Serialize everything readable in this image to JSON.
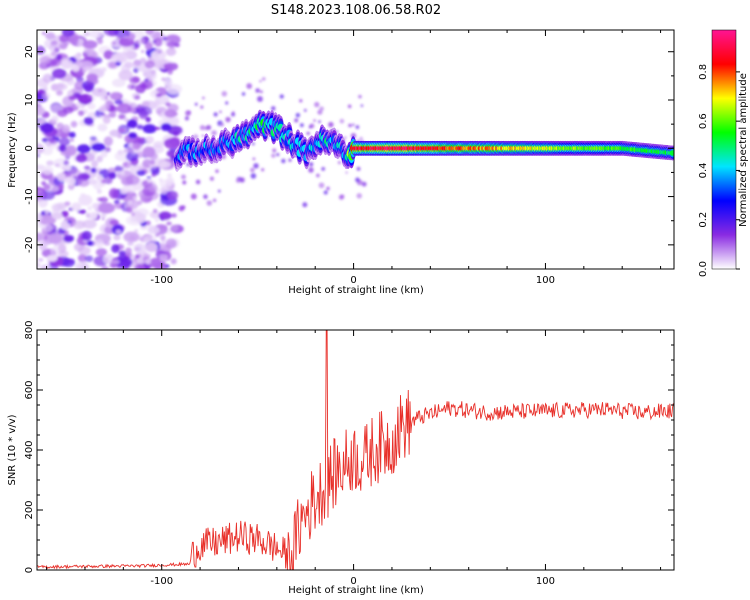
{
  "title": "S148.2023.108.06.58.R02",
  "chart_data": [
    {
      "type": "heatmap",
      "xlabel": "Height of straight line (km)",
      "ylabel": "Frequency (Hz)",
      "xlim": [
        -165,
        167
      ],
      "ylim": [
        -25,
        24.5
      ],
      "x_ticks": [
        -100,
        0,
        100
      ],
      "y_ticks": [
        -20,
        -10,
        0,
        10,
        20
      ],
      "colorbar": {
        "label": "Normalized spectral amplitude",
        "range": [
          0.0,
          0.97
        ],
        "ticks": [
          "0.0",
          "0.2",
          "0.4",
          "0.6",
          "0.8"
        ],
        "colors": [
          "#ffffff",
          "#8a2be2",
          "#0000ff",
          "#00e5ff",
          "#00ff00",
          "#ffff00",
          "#ff0000",
          "#ff1493"
        ]
      },
      "band": [
        {
          "x": -92,
          "f": -2.0,
          "amp": 0.28
        },
        {
          "x": -85,
          "f": -0.5,
          "amp": 0.3
        },
        {
          "x": -75,
          "f": -0.5,
          "amp": 0.32
        },
        {
          "x": -65,
          "f": 1.0,
          "amp": 0.35
        },
        {
          "x": -55,
          "f": 3.0,
          "amp": 0.4
        },
        {
          "x": -47,
          "f": 5.0,
          "amp": 0.45
        },
        {
          "x": -40,
          "f": 4.0,
          "amp": 0.4
        },
        {
          "x": -32,
          "f": 1.5,
          "amp": 0.35
        },
        {
          "x": -25,
          "f": -1.0,
          "amp": 0.35
        },
        {
          "x": -18,
          "f": 1.5,
          "amp": 0.4
        },
        {
          "x": -10,
          "f": 1.0,
          "amp": 0.4
        },
        {
          "x": -3,
          "f": -1.5,
          "amp": 0.4
        },
        {
          "x": 0,
          "f": 0.0,
          "amp": 0.85
        },
        {
          "x": 20,
          "f": 0.0,
          "amp": 0.92
        },
        {
          "x": 50,
          "f": 0.0,
          "amp": 0.8
        },
        {
          "x": 80,
          "f": 0.0,
          "amp": 0.72
        },
        {
          "x": 110,
          "f": 0.0,
          "amp": 0.62
        },
        {
          "x": 140,
          "f": 0.0,
          "amp": 0.55
        },
        {
          "x": 167,
          "f": -1.0,
          "amp": 0.48
        }
      ]
    },
    {
      "type": "line",
      "xlabel": "Height of straight line (km)",
      "ylabel": "SNR (10 * v/v)",
      "xlim": [
        -165,
        167
      ],
      "ylim": [
        0,
        800
      ],
      "x_ticks": [
        -100,
        0,
        100
      ],
      "y_ticks": [
        0,
        200,
        400,
        600,
        800
      ],
      "series": [
        {
          "color": "#e8302a",
          "x": [
            -165,
            -140,
            -110,
            -85,
            -80,
            -70,
            -60,
            -50,
            -40,
            -33,
            -28,
            -22,
            -15,
            -10,
            -5,
            0,
            5,
            10,
            20,
            25,
            35,
            50,
            70,
            100,
            130,
            150,
            167
          ],
          "y": [
            10,
            12,
            14,
            20,
            60,
            70,
            90,
            80,
            50,
            20,
            150,
            220,
            280,
            320,
            350,
            380,
            360,
            400,
            430,
            480,
            510,
            540,
            525,
            530,
            535,
            525,
            530
          ],
          "spike": {
            "x": -14,
            "y": 800
          }
        }
      ]
    }
  ]
}
